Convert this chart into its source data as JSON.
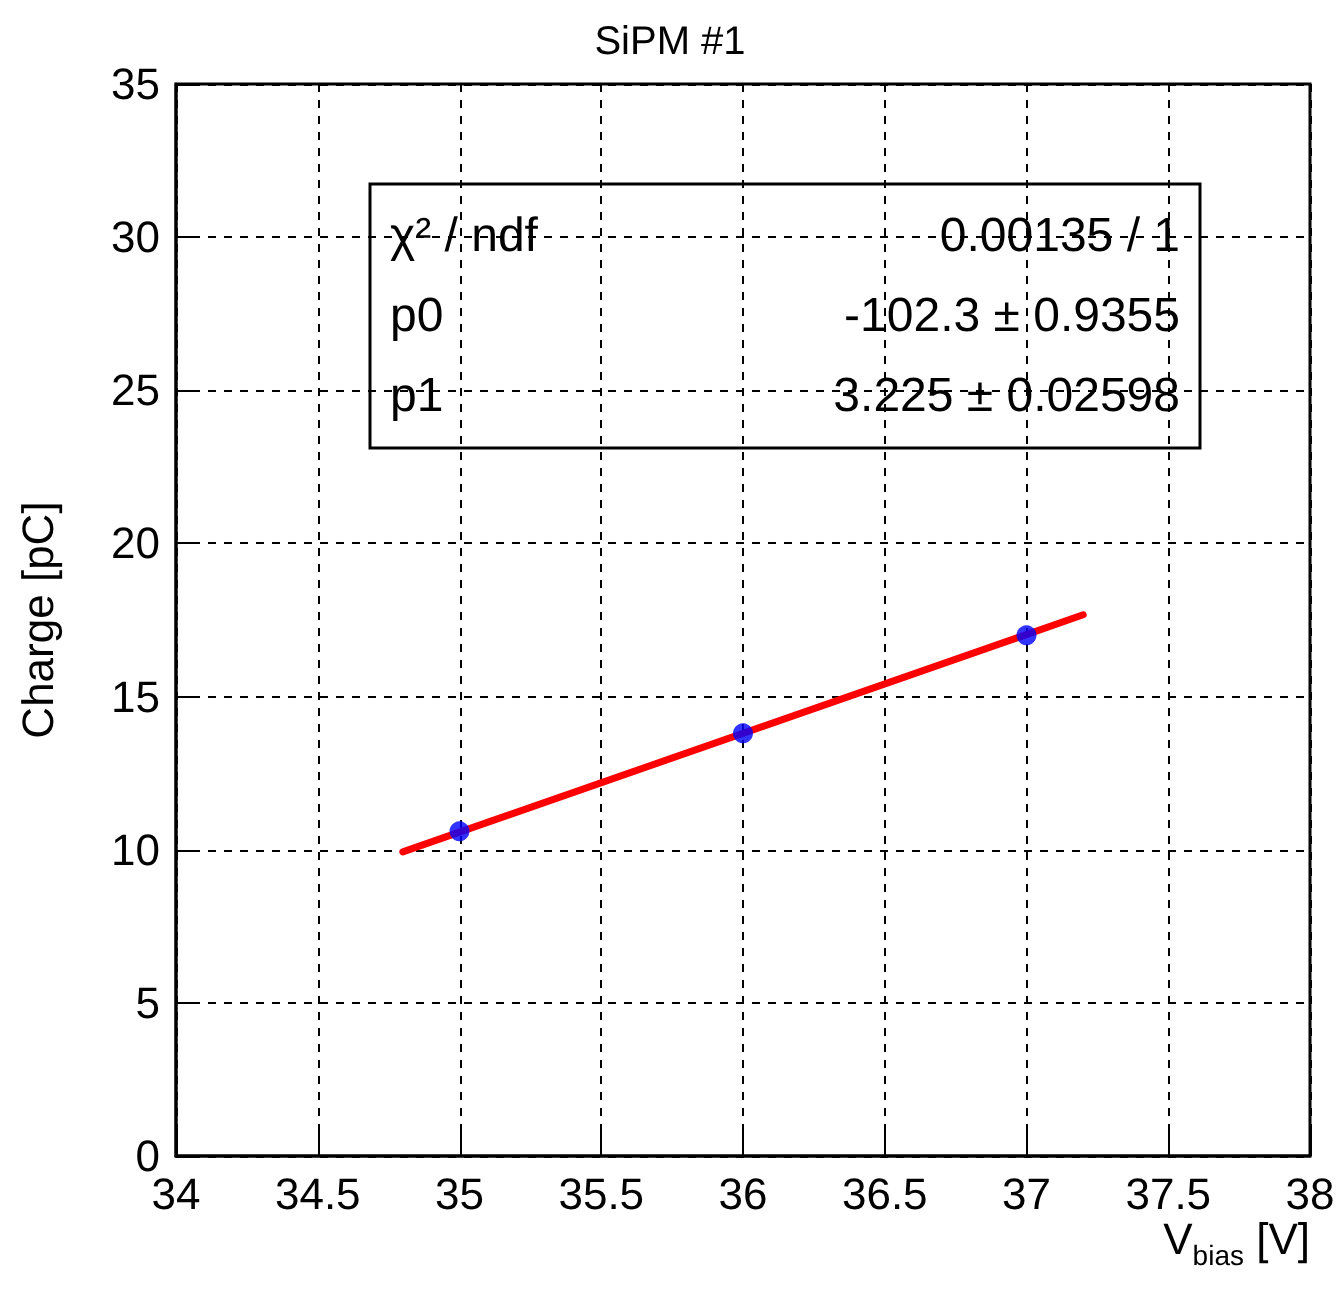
{
  "chart_data": {
    "type": "scatter",
    "title": "SiPM #1",
    "xlabel": "V$_{bias}$ [V]",
    "ylabel": "Charge [pC]",
    "series": [
      {
        "color": "#0000ff",
        "x": [
          35,
          36,
          37
        ],
        "values": [
          10.6,
          13.8,
          17.0
        ],
        "marker": "circle"
      },
      {
        "type": "line",
        "color": "#ff0000",
        "x": [
          34.8,
          37.2
        ],
        "values": [
          9.93,
          17.67
        ],
        "marker": "none",
        "line_style": "solid"
      }
    ],
    "xlim": [
      34,
      38
    ],
    "xticks": [
      34,
      34.5,
      35,
      35.5,
      36,
      36.5,
      37,
      37.5,
      38
    ],
    "ylim": [
      0,
      35
    ],
    "yticks": [
      0,
      5,
      10,
      15,
      20,
      25,
      30,
      35
    ],
    "grid": true,
    "annotations": [
      "χ² / ndf",
      "0.00135 / 1",
      "p0",
      "-102.3 ± 0.9355",
      "p1",
      "3.225 ± 0.02598"
    ]
  }
}
